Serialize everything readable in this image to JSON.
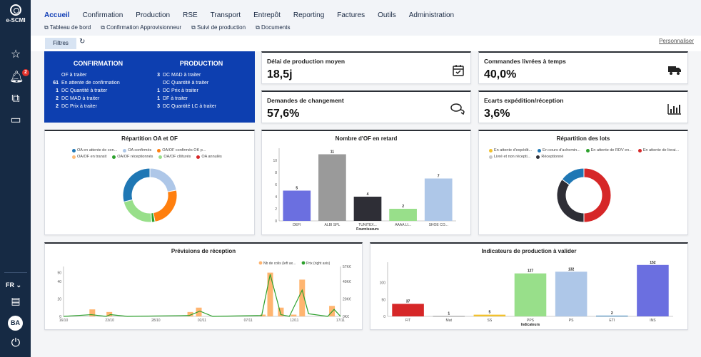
{
  "sidebar": {
    "logo_text": "e-SCMI",
    "notification_count": "2",
    "language": "FR",
    "avatar_initials": "BA",
    "icons": [
      "star-icon",
      "bell-icon",
      "copy-icon",
      "note-icon",
      "keyboard-icon",
      "power-icon"
    ]
  },
  "nav": {
    "items": [
      "Accueil",
      "Confirmation",
      "Production",
      "RSE",
      "Transport",
      "Entrepôt",
      "Reporting",
      "Factures",
      "Outils",
      "Administration"
    ],
    "active": "Accueil",
    "subitems": [
      "Tableau de bord",
      "Confirmation Approvisionneur",
      "Suivi de production",
      "Documents"
    ]
  },
  "toolbar": {
    "filter_label": "Filtres",
    "customize_label": "Personnaliser"
  },
  "summary": {
    "confirmation": {
      "title": "CONFIRMATION",
      "rows": [
        {
          "count": "",
          "label": "OF à traiter"
        },
        {
          "count": "61",
          "label": "En attente de confirmation"
        },
        {
          "count": "1",
          "label": "DC Quantité à traiter"
        },
        {
          "count": "2",
          "label": "DC MAD à traiter"
        },
        {
          "count": "2",
          "label": "DC Prix à traiter"
        }
      ]
    },
    "production": {
      "title": "PRODUCTION",
      "rows": [
        {
          "count": "3",
          "label": "DC MAD à traiter"
        },
        {
          "count": "",
          "label": "DC Quantité à traiter"
        },
        {
          "count": "1",
          "label": "DC Prix à traiter"
        },
        {
          "count": "1",
          "label": "DF à traiter"
        },
        {
          "count": "3",
          "label": "DC Quantité LC à traiter"
        }
      ]
    }
  },
  "kpis": [
    {
      "title": "Délai de production moyen",
      "value": "18,5j",
      "icon": "calendar-check-icon"
    },
    {
      "title": "Commandes livrées à temps",
      "value": "40,0%",
      "icon": "truck-icon"
    },
    {
      "title": "Demandes de changement",
      "value": "57,6%",
      "icon": "chat-icon"
    },
    {
      "title": "Ecarts expédition/réception",
      "value": "3,6%",
      "icon": "bar-chart-icon"
    }
  ],
  "chart_data": [
    {
      "type": "pie",
      "title": "Répartition OA et OF",
      "legend": [
        {
          "name": "OA en attente de con...",
          "color": "#1f77b4"
        },
        {
          "name": "OA confirmés",
          "color": "#aec7e8"
        },
        {
          "name": "OA/OF confirmés OK p...",
          "color": "#ff7f0e"
        },
        {
          "name": "OA/OF en transit",
          "color": "#ffbb78"
        },
        {
          "name": "OA/OF réceptionnés",
          "color": "#2ca02c"
        },
        {
          "name": "OA/OF clôturés",
          "color": "#98df8a"
        },
        {
          "name": "OA annulés",
          "color": "#d62728"
        }
      ],
      "slices": [
        {
          "color": "#aec7e8",
          "value": 22
        },
        {
          "color": "#ff7f0e",
          "value": 25
        },
        {
          "color": "#2ca02c",
          "value": 2
        },
        {
          "color": "#98df8a",
          "value": 22
        },
        {
          "color": "#1f77b4",
          "value": 29
        }
      ]
    },
    {
      "type": "bar",
      "title": "Nombre d'OF en retard",
      "xlabel": "Fournisseurs",
      "categories": [
        "DEFI",
        "ALBI SPL",
        "TUNITEX...",
        "AAAA LI...",
        "SHOE CO..."
      ],
      "values": [
        5,
        11,
        4,
        2,
        7
      ],
      "colors": [
        "#6b6fe0",
        "#9a9a9a",
        "#2e2e36",
        "#98df8a",
        "#aec7e8"
      ],
      "yticks": [
        0,
        2,
        4,
        6,
        8,
        10
      ],
      "ylim": [
        0,
        12
      ]
    },
    {
      "type": "pie",
      "title": "Répartition des lots",
      "legend": [
        {
          "name": "En attente d'expédit...",
          "color": "#f2c12e"
        },
        {
          "name": "En cours d'achemin...",
          "color": "#1f77b4"
        },
        {
          "name": "En attente de RDV en...",
          "color": "#2ca02c"
        },
        {
          "name": "En attente de livrai...",
          "color": "#d62728"
        },
        {
          "name": "Livré et non récepti...",
          "color": "#c8c8c8"
        },
        {
          "name": "Réceptionné",
          "color": "#2e2e36"
        }
      ],
      "slices": [
        {
          "color": "#d62728",
          "value": 50
        },
        {
          "color": "#2e2e36",
          "value": 35
        },
        {
          "color": "#1f77b4",
          "value": 15
        }
      ]
    },
    {
      "type": "bar",
      "title": "Prévisions de réception",
      "series": [
        {
          "name": "Nb de colis (left ax...",
          "color": "#ffb570"
        },
        {
          "name": "Prix (right axis)",
          "color": "#2ca02c"
        }
      ],
      "x_ticks": [
        "16/10",
        "23/10",
        "28/10",
        "02/11",
        "07/11",
        "12/11",
        "17/11"
      ],
      "left_ticks": [
        0,
        20,
        40,
        50
      ],
      "right_ticks": [
        "0K€",
        "20K€",
        "40K€",
        "57K€"
      ],
      "bars": [
        {
          "x": 0.135,
          "v": 8
        },
        {
          "x": 0.215,
          "v": 5
        },
        {
          "x": 0.595,
          "v": 5
        },
        {
          "x": 0.635,
          "v": 10
        },
        {
          "x": 0.935,
          "v": 2
        },
        {
          "x": 0.97,
          "v": 50
        },
        {
          "x": 1.02,
          "v": 10
        },
        {
          "x": 1.08,
          "v": 2
        },
        {
          "x": 1.12,
          "v": 42
        },
        {
          "x": 1.26,
          "v": 12
        }
      ],
      "line": [
        [
          0.0,
          0
        ],
        [
          0.13,
          2
        ],
        [
          0.2,
          0
        ],
        [
          0.22,
          2
        ],
        [
          0.3,
          0
        ],
        [
          0.59,
          1
        ],
        [
          0.64,
          6
        ],
        [
          0.7,
          0
        ],
        [
          0.93,
          1
        ],
        [
          0.97,
          48
        ],
        [
          1.02,
          2
        ],
        [
          1.06,
          0
        ],
        [
          1.12,
          30
        ],
        [
          1.15,
          3
        ],
        [
          1.24,
          0
        ],
        [
          1.27,
          8
        ],
        [
          1.3,
          0
        ]
      ]
    },
    {
      "type": "bar",
      "title": "Indicateurs de production à valider",
      "xlabel": "Indicateurs",
      "categories": [
        "FIT",
        "Mat",
        "SS",
        "PPS",
        "PS",
        "ETI",
        "INS"
      ],
      "values": [
        37,
        1,
        5,
        127,
        132,
        2,
        152
      ],
      "colors": [
        "#d62728",
        "#7f7f7f",
        "#f2c12e",
        "#98df8a",
        "#aec7e8",
        "#1f77b4",
        "#6b6fe0"
      ],
      "yticks": [
        0,
        50,
        100
      ],
      "ylim": [
        0,
        160
      ]
    }
  ]
}
